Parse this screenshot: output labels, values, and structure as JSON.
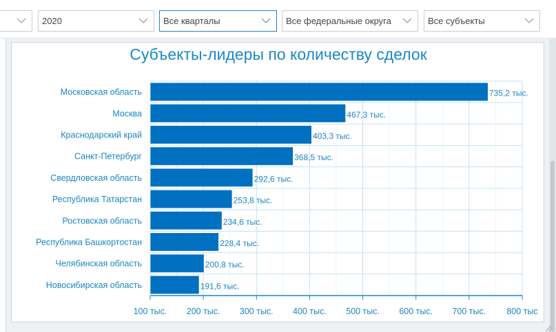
{
  "filters": {
    "first_value": "",
    "year": "2020",
    "quarter": "Все кварталы",
    "district": "Все федеральные округа",
    "subject": "Все субъекты"
  },
  "colors": {
    "bar": "#0070c0",
    "text": "#1a85c6",
    "grid": "#c7e0f0",
    "axis": "#1a85c6"
  },
  "icons": {
    "dropdown": "chevron-down-icon",
    "resize": "resize-grip-icon"
  },
  "chart_data": {
    "type": "bar",
    "orientation": "horizontal",
    "title": "Субъекты-лидеры по количеству сделок",
    "categories": [
      "Московская область",
      "Москва",
      "Краснодарский край",
      "Санкт-Петербург",
      "Свердловская область",
      "Республика Татарстан",
      "Ростовская область",
      "Республика Башкортостан",
      "Челябинская область",
      "Новосибирская область"
    ],
    "values": [
      735.2,
      467.3,
      403.3,
      368.5,
      292.6,
      253.8,
      234.6,
      228.4,
      200.8,
      191.6
    ],
    "value_labels": [
      "735,2 тыс.",
      "467,3 тыс.",
      "403,3 тыс.",
      "368,5 тыс.",
      "292,6 тыс.",
      "253,8 тыс.",
      "234,6 тыс.",
      "228,4 тыс.",
      "200,8 тыс.",
      "191,6 тыс."
    ],
    "xlim": [
      100,
      800
    ],
    "x_ticks": [
      100,
      200,
      300,
      400,
      500,
      600,
      700,
      800
    ],
    "x_tick_labels": [
      "100 тыс.",
      "200 тыс.",
      "300 тыс.",
      "400 тыс.",
      "500 тыс.",
      "600 тыс.",
      "700 тыс.",
      "800 тыс"
    ],
    "grid": true,
    "legend": "none"
  }
}
